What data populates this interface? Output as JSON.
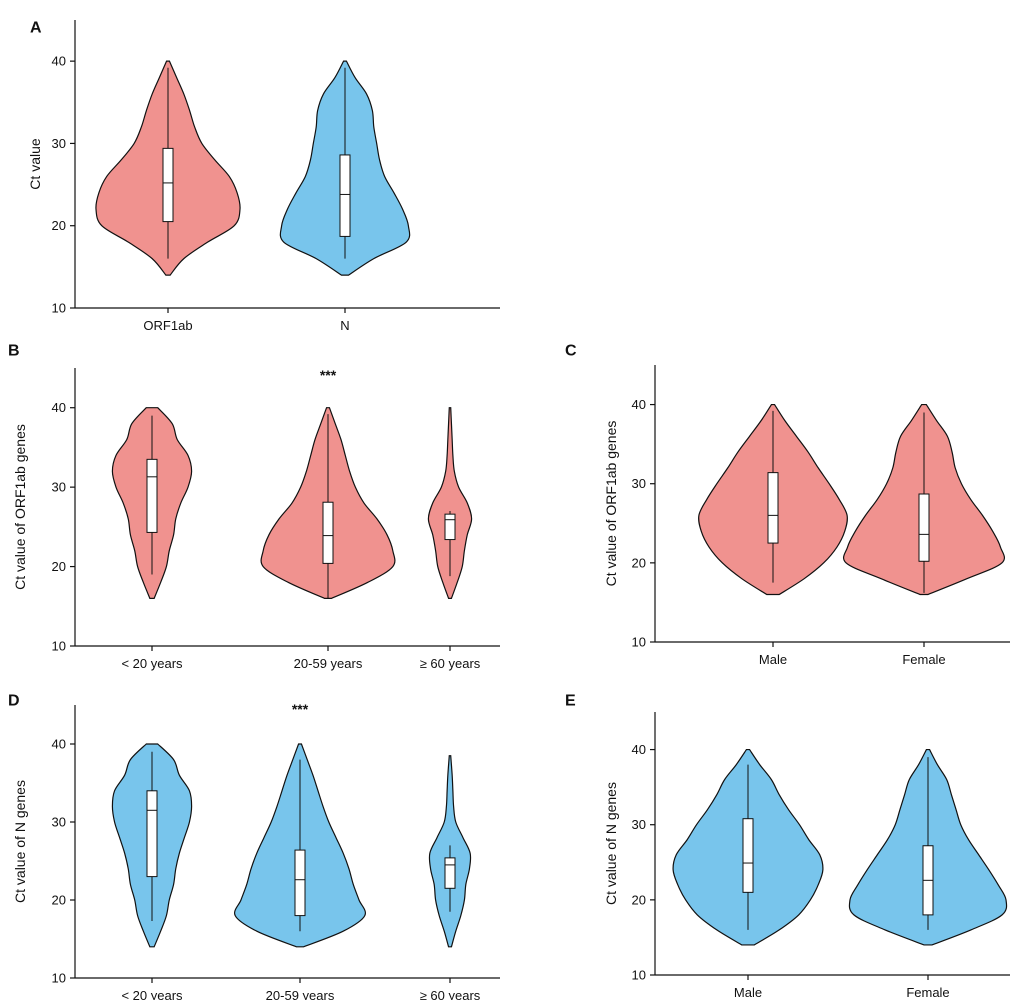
{
  "colors": {
    "orf": "#f0928f",
    "n": "#78c5ec",
    "ink": "#111111"
  },
  "chart_data": [
    {
      "panel": "A",
      "type": "violin",
      "ylabel": "Ct value",
      "ylim": [
        10,
        45
      ],
      "yticks": [
        "10",
        "20",
        "30",
        "40"
      ],
      "annotation": "",
      "groups": [
        {
          "label": "ORF1ab",
          "color": "orf",
          "min": 14,
          "max": 40,
          "whisker_low": 16,
          "whisker_high": 39.2,
          "q1": 20.5,
          "median": 25.2,
          "q3": 29.4,
          "density": [
            [
              14,
              0.03
            ],
            [
              16,
              0.22
            ],
            [
              18,
              0.55
            ],
            [
              20,
              0.92
            ],
            [
              22,
              1.0
            ],
            [
              24,
              0.96
            ],
            [
              26,
              0.85
            ],
            [
              28,
              0.65
            ],
            [
              30,
              0.47
            ],
            [
              32,
              0.37
            ],
            [
              34,
              0.3
            ],
            [
              36,
              0.22
            ],
            [
              38,
              0.12
            ],
            [
              40,
              0.02
            ]
          ]
        },
        {
          "label": "N",
          "color": "n",
          "min": 14,
          "max": 40,
          "whisker_low": 16,
          "whisker_high": 39.2,
          "q1": 18.7,
          "median": 23.8,
          "q3": 28.6,
          "density": [
            [
              14,
              0.05
            ],
            [
              16,
              0.4
            ],
            [
              18,
              0.85
            ],
            [
              20,
              0.88
            ],
            [
              22,
              0.8
            ],
            [
              24,
              0.68
            ],
            [
              26,
              0.55
            ],
            [
              28,
              0.48
            ],
            [
              30,
              0.44
            ],
            [
              32,
              0.4
            ],
            [
              34,
              0.38
            ],
            [
              36,
              0.3
            ],
            [
              38,
              0.14
            ],
            [
              40,
              0.02
            ]
          ]
        }
      ]
    },
    {
      "panel": "B",
      "type": "violin",
      "ylabel": "Ct value of ORF1ab genes",
      "ylim": [
        10,
        45
      ],
      "yticks": [
        "10",
        "20",
        "30",
        "40"
      ],
      "annotation": "***",
      "groups": [
        {
          "label": "< 20 years",
          "color": "orf",
          "min": 16,
          "max": 40,
          "whisker_low": 19,
          "whisker_high": 39,
          "q1": 24.3,
          "median": 31.3,
          "q3": 33.5,
          "density": [
            [
              16,
              0.03
            ],
            [
              18,
              0.12
            ],
            [
              20,
              0.2
            ],
            [
              22,
              0.24
            ],
            [
              24,
              0.3
            ],
            [
              26,
              0.33
            ],
            [
              28,
              0.4
            ],
            [
              30,
              0.5
            ],
            [
              32,
              0.55
            ],
            [
              34,
              0.5
            ],
            [
              36,
              0.35
            ],
            [
              38,
              0.28
            ],
            [
              40,
              0.08
            ]
          ]
        },
        {
          "label": "20-59 years",
          "color": "orf",
          "min": 16,
          "max": 40,
          "whisker_low": 16,
          "whisker_high": 39.2,
          "q1": 20.4,
          "median": 23.9,
          "q3": 28.1,
          "density": [
            [
              16,
              0.05
            ],
            [
              18,
              0.55
            ],
            [
              20,
              0.9
            ],
            [
              22,
              0.9
            ],
            [
              24,
              0.82
            ],
            [
              26,
              0.68
            ],
            [
              28,
              0.5
            ],
            [
              30,
              0.38
            ],
            [
              32,
              0.3
            ],
            [
              34,
              0.24
            ],
            [
              36,
              0.18
            ],
            [
              38,
              0.1
            ],
            [
              40,
              0.02
            ]
          ]
        },
        {
          "label": "≥ 60 years",
          "color": "orf",
          "min": 16,
          "max": 40,
          "whisker_low": 18.8,
          "whisker_high": 27,
          "q1": 23.4,
          "median": 25.9,
          "q3": 26.6,
          "density": [
            [
              16,
              0.02
            ],
            [
              18,
              0.1
            ],
            [
              20,
              0.17
            ],
            [
              22,
              0.2
            ],
            [
              24,
              0.24
            ],
            [
              26,
              0.3
            ],
            [
              28,
              0.24
            ],
            [
              30,
              0.12
            ],
            [
              32,
              0.06
            ],
            [
              34,
              0.04
            ],
            [
              36,
              0.03
            ],
            [
              38,
              0.02
            ],
            [
              40,
              0.01
            ]
          ]
        }
      ]
    },
    {
      "panel": "C",
      "type": "violin",
      "ylabel": "Ct value of ORF1ab genes",
      "ylim": [
        10,
        45
      ],
      "yticks": [
        "10",
        "20",
        "30",
        "40"
      ],
      "annotation": "",
      "groups": [
        {
          "label": "Male",
          "color": "orf",
          "min": 16,
          "max": 40,
          "whisker_low": 17.5,
          "whisker_high": 39.2,
          "q1": 22.5,
          "median": 26,
          "q3": 31.4,
          "density": [
            [
              16,
              0.08
            ],
            [
              18,
              0.4
            ],
            [
              20,
              0.65
            ],
            [
              22,
              0.82
            ],
            [
              24,
              0.92
            ],
            [
              26,
              0.95
            ],
            [
              28,
              0.85
            ],
            [
              30,
              0.72
            ],
            [
              32,
              0.58
            ],
            [
              34,
              0.45
            ],
            [
              36,
              0.3
            ],
            [
              38,
              0.15
            ],
            [
              40,
              0.02
            ]
          ]
        },
        {
          "label": "Female",
          "color": "orf",
          "min": 16,
          "max": 40,
          "whisker_low": 16.2,
          "whisker_high": 39,
          "q1": 20.2,
          "median": 23.6,
          "q3": 28.7,
          "density": [
            [
              16,
              0.05
            ],
            [
              18,
              0.55
            ],
            [
              20,
              1.0
            ],
            [
              22,
              0.98
            ],
            [
              24,
              0.88
            ],
            [
              26,
              0.75
            ],
            [
              28,
              0.6
            ],
            [
              30,
              0.48
            ],
            [
              32,
              0.4
            ],
            [
              34,
              0.36
            ],
            [
              36,
              0.3
            ],
            [
              38,
              0.16
            ],
            [
              40,
              0.03
            ]
          ]
        }
      ]
    },
    {
      "panel": "D",
      "type": "violin",
      "ylabel": "Ct value of N genes",
      "ylim": [
        10,
        45
      ],
      "yticks": [
        "10",
        "20",
        "30",
        "40"
      ],
      "annotation": "***",
      "groups": [
        {
          "label": "< 20 years",
          "color": "n",
          "min": 14,
          "max": 40,
          "whisker_low": 17.3,
          "whisker_high": 39,
          "q1": 23,
          "median": 31.5,
          "q3": 34,
          "density": [
            [
              14,
              0.03
            ],
            [
              16,
              0.12
            ],
            [
              18,
              0.2
            ],
            [
              20,
              0.24
            ],
            [
              22,
              0.3
            ],
            [
              24,
              0.33
            ],
            [
              26,
              0.38
            ],
            [
              28,
              0.45
            ],
            [
              30,
              0.52
            ],
            [
              32,
              0.55
            ],
            [
              34,
              0.52
            ],
            [
              36,
              0.38
            ],
            [
              38,
              0.3
            ],
            [
              40,
              0.08
            ]
          ]
        },
        {
          "label": "20-59 years",
          "color": "n",
          "min": 14,
          "max": 40,
          "whisker_low": 16,
          "whisker_high": 38,
          "q1": 18,
          "median": 22.6,
          "q3": 26.4,
          "density": [
            [
              14,
              0.05
            ],
            [
              16,
              0.6
            ],
            [
              18,
              0.9
            ],
            [
              20,
              0.82
            ],
            [
              22,
              0.74
            ],
            [
              24,
              0.68
            ],
            [
              26,
              0.6
            ],
            [
              28,
              0.5
            ],
            [
              30,
              0.4
            ],
            [
              32,
              0.32
            ],
            [
              34,
              0.25
            ],
            [
              36,
              0.18
            ],
            [
              38,
              0.1
            ],
            [
              40,
              0.02
            ]
          ]
        },
        {
          "label": "≥ 60 years",
          "color": "n",
          "min": 14,
          "max": 38.5,
          "whisker_low": 18.5,
          "whisker_high": 27,
          "q1": 21.5,
          "median": 24.5,
          "q3": 25.4,
          "density": [
            [
              14,
              0.02
            ],
            [
              16,
              0.08
            ],
            [
              18,
              0.15
            ],
            [
              20,
              0.2
            ],
            [
              22,
              0.22
            ],
            [
              24,
              0.27
            ],
            [
              26,
              0.28
            ],
            [
              28,
              0.18
            ],
            [
              30,
              0.08
            ],
            [
              32,
              0.05
            ],
            [
              34,
              0.04
            ],
            [
              36,
              0.03
            ],
            [
              38.5,
              0.01
            ]
          ]
        }
      ]
    },
    {
      "panel": "E",
      "type": "violin",
      "ylabel": "Ct value of N genes",
      "ylim": [
        10,
        45
      ],
      "yticks": [
        "10",
        "20",
        "30",
        "40"
      ],
      "annotation": "",
      "groups": [
        {
          "label": "Male",
          "color": "n",
          "min": 14,
          "max": 40,
          "whisker_low": 16,
          "whisker_high": 38,
          "q1": 21,
          "median": 24.9,
          "q3": 30.8,
          "density": [
            [
              14,
              0.08
            ],
            [
              16,
              0.4
            ],
            [
              18,
              0.65
            ],
            [
              20,
              0.8
            ],
            [
              22,
              0.9
            ],
            [
              24,
              0.96
            ],
            [
              26,
              0.92
            ],
            [
              28,
              0.78
            ],
            [
              30,
              0.66
            ],
            [
              32,
              0.52
            ],
            [
              34,
              0.4
            ],
            [
              36,
              0.3
            ],
            [
              38,
              0.15
            ],
            [
              40,
              0.02
            ]
          ]
        },
        {
          "label": "Female",
          "color": "n",
          "min": 14,
          "max": 40,
          "whisker_low": 16,
          "whisker_high": 39,
          "q1": 18,
          "median": 22.6,
          "q3": 27.2,
          "density": [
            [
              14,
              0.05
            ],
            [
              16,
              0.55
            ],
            [
              18,
              0.95
            ],
            [
              20,
              1.0
            ],
            [
              22,
              0.9
            ],
            [
              24,
              0.78
            ],
            [
              26,
              0.65
            ],
            [
              28,
              0.52
            ],
            [
              30,
              0.42
            ],
            [
              32,
              0.36
            ],
            [
              34,
              0.3
            ],
            [
              36,
              0.24
            ],
            [
              38,
              0.12
            ],
            [
              40,
              0.02
            ]
          ]
        }
      ]
    }
  ]
}
